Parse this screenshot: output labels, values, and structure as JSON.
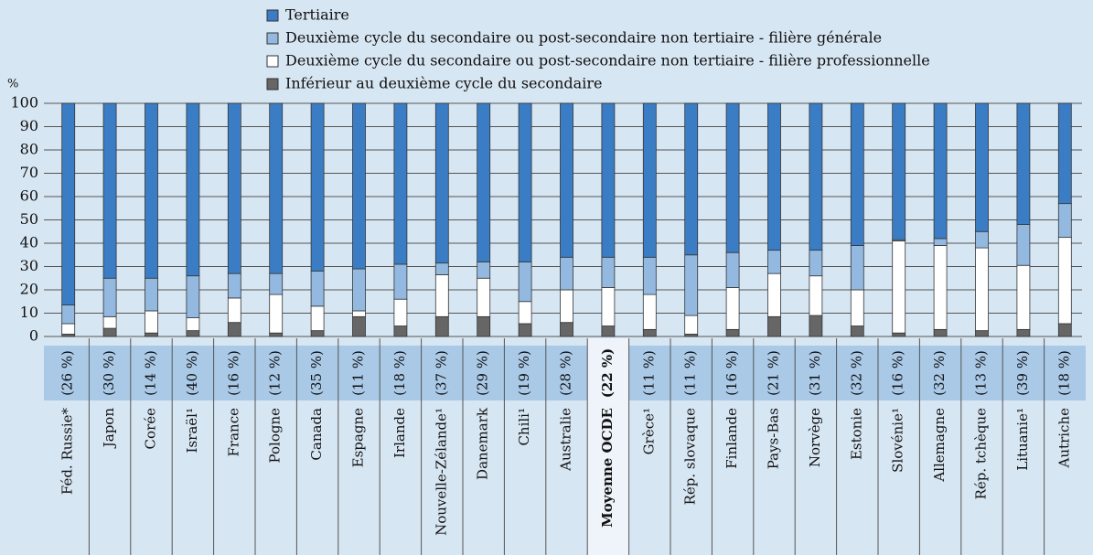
{
  "chart_data": {
    "type": "stacked_bar",
    "y_axis_label": "%",
    "categories": [
      "Féd. Russie*",
      "Japon",
      "Corée",
      "Israël¹",
      "France",
      "Pologne",
      "Canada",
      "Espagne",
      "Irlande",
      "Nouvelle-Zélande¹",
      "Danemark",
      "Chili¹",
      "Australie",
      "Moyenne OCDE",
      "Grèce¹",
      "Rép. slovaque",
      "Finlande",
      "Pays-Bas",
      "Norvège",
      "Estonie",
      "Slovénie¹",
      "Allemagne",
      "Rép. tchèque",
      "Lituanie¹",
      "Autriche"
    ],
    "shares": [
      "(26 %)",
      "(30 %)",
      "(14 %)",
      "(40 %)",
      "(16 %)",
      "(12 %)",
      "(35 %)",
      "(11 %)",
      "(18 %)",
      "(37 %)",
      "(29 %)",
      "(19 %)",
      "(28 %)",
      "(22 %)",
      "(11 %)",
      "(11 %)",
      "(16 %)",
      "(21 %)",
      "(31 %)",
      "(32 %)",
      "(16 %)",
      "(32 %)",
      "(13 %)",
      "(39 %)",
      "(18 %)"
    ],
    "highlighted_category": "Moyenne OCDE",
    "series": [
      {
        "name": "Tertiaire",
        "color": "#3b7dc4",
        "values": [
          86.5,
          75,
          75,
          74,
          73,
          73,
          72,
          71,
          69,
          68.5,
          68,
          68,
          66,
          66,
          66,
          65,
          64,
          63,
          63,
          61,
          58.5,
          58,
          55,
          52,
          43
        ]
      },
      {
        "name": "Deuxième cycle du secondaire ou post-secondaire non tertiaire - filière générale",
        "color": "#93b9e0",
        "values": [
          8,
          16.5,
          14,
          18,
          10.5,
          9,
          15,
          18,
          15,
          5,
          7,
          17,
          14,
          13,
          16,
          26,
          15,
          10,
          11,
          19,
          0.5,
          3,
          7,
          17.5,
          14.5
        ]
      },
      {
        "name": "Deuxième cycle du secondaire ou post-secondaire non tertiaire - filière professionnelle",
        "color": "#ffffff",
        "values": [
          4.5,
          5,
          9.5,
          5.5,
          10.5,
          16.5,
          10.5,
          2.5,
          11.5,
          18,
          16.5,
          9.5,
          14,
          16.5,
          15,
          8,
          18,
          18.5,
          17,
          15.5,
          39.5,
          36,
          35.5,
          27.5,
          37
        ]
      },
      {
        "name": "Inférieur au deuxième cycle du secondaire",
        "color": "#666666",
        "values": [
          1,
          3.5,
          1.5,
          2.5,
          6,
          1.5,
          2.5,
          8.5,
          4.5,
          8.5,
          8.5,
          5.5,
          6,
          4.5,
          3,
          1,
          3,
          8.5,
          9,
          4.5,
          1.5,
          3,
          2.5,
          3,
          5.5
        ]
      }
    ],
    "ylim": [
      0,
      100
    ],
    "yticks": [
      0,
      10,
      20,
      30,
      40,
      50,
      60,
      70,
      80,
      90,
      100
    ],
    "grid": true
  }
}
